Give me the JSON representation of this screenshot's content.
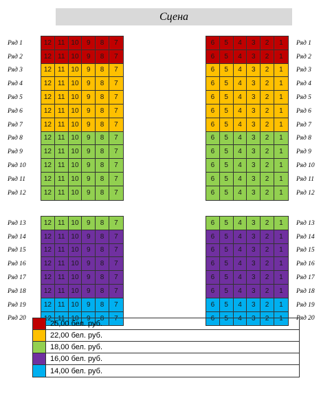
{
  "stage_label": "Сцена",
  "colors": {
    "red": "#c00000",
    "orange": "#ffc000",
    "green": "#92d050",
    "purple": "#7030a0",
    "blue": "#00b0f0"
  },
  "left_seats": [
    "12",
    "11",
    "10",
    "9",
    "8",
    "7"
  ],
  "right_seats": [
    "6",
    "5",
    "4",
    "3",
    "2",
    "1"
  ],
  "rows": [
    {
      "label": "Ряд 1",
      "price": "red"
    },
    {
      "label": "Ряд 2",
      "price": "red"
    },
    {
      "label": "Ряд 3",
      "price": "orange"
    },
    {
      "label": "Ряд 4",
      "price": "orange"
    },
    {
      "label": "Ряд 5",
      "price": "orange"
    },
    {
      "label": "Ряд 6",
      "price": "orange"
    },
    {
      "label": "Ряд 7",
      "price": "orange"
    },
    {
      "label": "Ряд 8",
      "price": "green"
    },
    {
      "label": "Ряд 9",
      "price": "green"
    },
    {
      "label": "Ряд 10",
      "price": "green"
    },
    {
      "label": "Ряд 11",
      "price": "green"
    },
    {
      "label": "Ряд 12",
      "price": "green"
    },
    {
      "label": "Ряд 13",
      "price": "green"
    },
    {
      "label": "Ряд 14",
      "price": "purple"
    },
    {
      "label": "Ряд 15",
      "price": "purple"
    },
    {
      "label": "Ряд 16",
      "price": "purple"
    },
    {
      "label": "Ряд 17",
      "price": "purple"
    },
    {
      "label": "Ряд 18",
      "price": "purple"
    },
    {
      "label": "Ряд 19",
      "price": "blue"
    },
    {
      "label": "Ряд 20",
      "price": "blue"
    }
  ],
  "legend": [
    {
      "color": "red",
      "text": "25,00 бел. руб."
    },
    {
      "color": "orange",
      "text": "22,00 бел. руб."
    },
    {
      "color": "green",
      "text": "18,00 бел. руб."
    },
    {
      "color": "purple",
      "text": "16,00 бел. руб."
    },
    {
      "color": "blue",
      "text": "14,00 бел. руб."
    }
  ]
}
